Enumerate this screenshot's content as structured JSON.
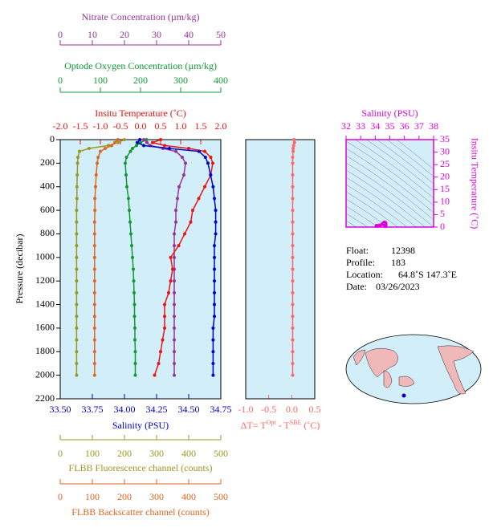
{
  "chart_data": [
    {
      "type": "line",
      "ylabel": "Pressure (decibar)",
      "ylim": [
        2200,
        0
      ],
      "yticks": [
        0,
        200,
        400,
        600,
        800,
        1000,
        1200,
        1400,
        1600,
        1800,
        2000,
        2200
      ],
      "pressure": [
        0,
        25,
        50,
        75,
        100,
        150,
        200,
        300,
        400,
        500,
        600,
        700,
        800,
        900,
        1000,
        1100,
        1200,
        1300,
        1400,
        1500,
        1600,
        1700,
        1800,
        1900,
        2000
      ],
      "x_axes": [
        {
          "label": "Nitrate Concentration (µm/kg)",
          "color": "#993399",
          "xlim": [
            0,
            50
          ],
          "xticks": [
            0,
            10,
            20,
            30,
            40,
            50
          ]
        },
        {
          "label": "Optode Oxygen Concentration (µm/kg)",
          "color": "#119933",
          "xlim": [
            0,
            400
          ],
          "xticks": [
            0,
            100,
            200,
            300,
            400
          ]
        },
        {
          "label": "Insitu Temperature (˚C)",
          "color": "#ee1111",
          "xlim": [
            -2,
            2
          ],
          "xticks": [
            {
              "value": -2,
              "label": "-2.0"
            },
            {
              "value": -1.5,
              "label": "-1.5"
            },
            {
              "value": -1,
              "label": "-1.0"
            },
            {
              "value": -0.5,
              "label": "-0.5"
            },
            {
              "value": 0,
              "label": "0.0"
            },
            {
              "value": 0.5,
              "label": "0.5"
            },
            {
              "value": 1,
              "label": "1.0"
            },
            {
              "value": 1.5,
              "label": "1.5"
            },
            {
              "value": 2,
              "label": "2.0"
            }
          ]
        },
        {
          "label": "Salinity (PSU)",
          "color": "#0000cc",
          "xlim": [
            33.5,
            34.75
          ],
          "xticks": [
            {
              "value": 33.5,
              "label": "33.50"
            },
            33.75,
            {
              "value": 34,
              "label": "34.00"
            },
            34.25,
            {
              "value": 34.5,
              "label": "34.50"
            },
            34.75
          ]
        },
        {
          "label": "FLBB Fluorescence channel (counts)",
          "color": "#999922",
          "xlim": [
            0,
            500
          ],
          "xticks": [
            0,
            100,
            200,
            300,
            400,
            500
          ]
        },
        {
          "label": "FLBB Backscatter channel (counts)",
          "color": "#dd6622",
          "xlim": [
            0,
            500
          ],
          "xticks": [
            0,
            100,
            200,
            300,
            400,
            500
          ]
        }
      ],
      "series": [
        {
          "axis": 4,
          "values": [
            200,
            180,
            150,
            90,
            60,
            55,
            54,
            53,
            52,
            52,
            51,
            51,
            51,
            51,
            51,
            51,
            51,
            51,
            51,
            51,
            51,
            51,
            51,
            51,
            51
          ]
        },
        {
          "axis": 5,
          "values": [
            180,
            170,
            160,
            140,
            125,
            118,
            115,
            112,
            110,
            108,
            108,
            107,
            107,
            107,
            107,
            107,
            107,
            107,
            107,
            107,
            107,
            107,
            107,
            107,
            107
          ]
        },
        {
          "axis": 1,
          "values": [
            215,
            200,
            190,
            180,
            175,
            165,
            162,
            164,
            166,
            170,
            172,
            174,
            176,
            178,
            180,
            182,
            183,
            184,
            185,
            185,
            186,
            186,
            187,
            187,
            187
          ]
        },
        {
          "axis": 0,
          "values": [
            26,
            27,
            28,
            32,
            36,
            38,
            39,
            38.5,
            37,
            36.5,
            36,
            36,
            35.5,
            35.5,
            35.5,
            35.5,
            35.5,
            35.5,
            35.5,
            35.5,
            35.5,
            35.5,
            35.5,
            35.5,
            35.5
          ]
        },
        {
          "axis": 2,
          "values": [
            0.5,
            0.3,
            0.6,
            1.2,
            1.6,
            1.75,
            1.8,
            1.75,
            1.6,
            1.45,
            1.3,
            1.25,
            1.1,
            0.95,
            0.75,
            0.8,
            0.75,
            0.7,
            0.6,
            0.6,
            0.6,
            0.55,
            0.5,
            0.45,
            0.35
          ]
        },
        {
          "axis": 3,
          "values": [
            34.12,
            34.1,
            34.15,
            34.35,
            34.58,
            34.63,
            34.65,
            34.67,
            34.69,
            34.7,
            34.71,
            34.71,
            34.71,
            34.7,
            34.7,
            34.7,
            34.7,
            34.7,
            34.7,
            34.7,
            34.69,
            34.69,
            34.69,
            34.69,
            34.69
          ]
        }
      ]
    },
    {
      "type": "line",
      "xlabel_parts": [
        "ΔT= T",
        "Opt",
        " - T",
        "SBE",
        " (˚C)"
      ],
      "color": "#ff6666",
      "xlim": [
        -1,
        0.5
      ],
      "xticks": [
        {
          "value": -1,
          "label": "-1.0"
        },
        {
          "value": -0.5,
          "label": "-0.5"
        },
        {
          "value": 0,
          "label": "0.0"
        },
        0.5
      ],
      "ylim": [
        2200,
        0
      ],
      "pressure": [
        0,
        25,
        50,
        75,
        100,
        150,
        200,
        300,
        400,
        500,
        600,
        700,
        800,
        900,
        1000,
        1100,
        1200,
        1300,
        1400,
        1500,
        1600,
        1700,
        1800,
        1900,
        2000
      ],
      "values": [
        0.05,
        0.06,
        0.04,
        0.03,
        0.03,
        0.02,
        0.02,
        0.02,
        0.02,
        0.02,
        0.02,
        0.02,
        0.02,
        0.02,
        0.02,
        0.02,
        0.02,
        0.02,
        0.02,
        0.02,
        0.02,
        0.02,
        0.02,
        0.02,
        0.02
      ]
    },
    {
      "type": "scatter",
      "xlabel": "Salinity (PSU)",
      "ylabel": "Insitu Temperature (˚C)",
      "color": "#dd00dd",
      "xlim": [
        32,
        38
      ],
      "xticks": [
        32,
        33,
        34,
        35,
        36,
        37,
        38
      ],
      "ylim": [
        0,
        35
      ],
      "yticks": [
        0,
        5,
        10,
        15,
        20,
        25,
        30,
        35
      ],
      "x": [
        34.1,
        34.3,
        34.5,
        34.6,
        34.65,
        34.7,
        34.7,
        34.69
      ],
      "y": [
        0.5,
        0.6,
        1.2,
        1.7,
        1.8,
        1.5,
        0.8,
        0.4
      ]
    }
  ],
  "info": [
    {
      "label": "Float:",
      "value": "12398"
    },
    {
      "label": "Profile:",
      "value": "183"
    },
    {
      "label": "Location:",
      "value": "64.8˚S  147.3˚E"
    },
    {
      "label": "Date:",
      "value": "03/26/2023"
    }
  ]
}
